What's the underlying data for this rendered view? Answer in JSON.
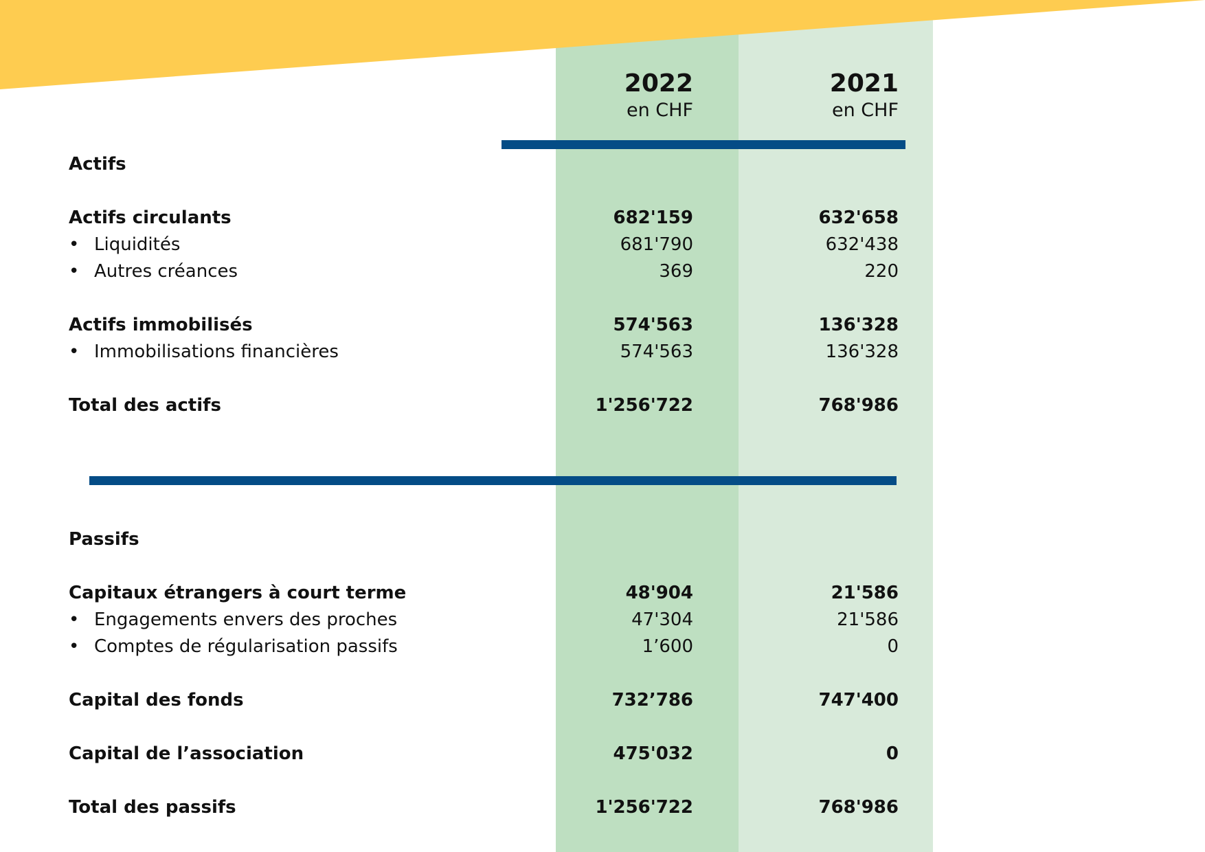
{
  "colors": {
    "banner": "#fecc50",
    "col_2022": "#bedfc1",
    "col_2021": "#d8eada",
    "rule": "#044c86"
  },
  "header": {
    "col1": {
      "year": "2022",
      "unit": "en CHF"
    },
    "col2": {
      "year": "2021",
      "unit": "en CHF"
    }
  },
  "actifs": {
    "title": "Actifs",
    "circulants": {
      "label": "Actifs circulants",
      "v2022": "682'159",
      "v2021": "632'658"
    },
    "liquidites": {
      "bullet": "•",
      "label": "Liquidités",
      "v2022": "681'790",
      "v2021": "632'438"
    },
    "autres_creances": {
      "bullet": "•",
      "label": "Autres créances",
      "v2022": "369",
      "v2021": "220"
    },
    "immobilises": {
      "label": "Actifs immobilisés",
      "v2022": "574'563",
      "v2021": "136'328"
    },
    "immobilisations_financieres": {
      "bullet": "•",
      "label": "Immobilisations financières",
      "v2022": "574'563",
      "v2021": "136'328"
    },
    "total": {
      "label": "Total des actifs",
      "v2022": "1'256'722",
      "v2021": "768'986"
    }
  },
  "passifs": {
    "title": "Passifs",
    "capitaux_etrangers": {
      "label": "Capitaux étrangers à court terme",
      "v2022": "48'904",
      "v2021": "21'586"
    },
    "engagements": {
      "bullet": "•",
      "label": "Engagements envers des proches",
      "v2022": "47'304",
      "v2021": "21'586"
    },
    "comptes_regularisation": {
      "bullet": "•",
      "label": "Comptes de régularisation passifs",
      "v2022": "1’600",
      "v2021": "0"
    },
    "capital_fonds": {
      "label": "Capital des fonds",
      "v2022": "732’786",
      "v2021": "747'400"
    },
    "capital_association": {
      "label": "Capital de l’association",
      "v2022": "475'032",
      "v2021": "0"
    },
    "total": {
      "label": "Total des passifs",
      "v2022": "1'256'722",
      "v2021": "768'986"
    }
  }
}
